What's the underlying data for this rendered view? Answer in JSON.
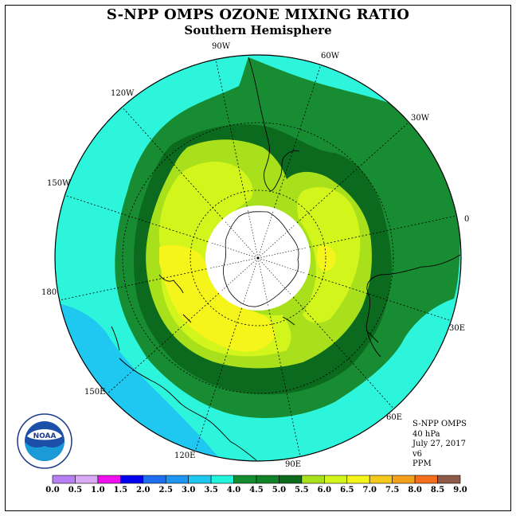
{
  "title": "S-NPP OMPS OZONE MIXING RATIO",
  "subtitle": "Southern Hemisphere",
  "longitude_labels": {
    "lon_90w": "90W",
    "lon_60w": "60W",
    "lon_120w": "120W",
    "lon_30w": "30W",
    "lon_150w": "150W",
    "lon_0": "0",
    "lon_180": "180",
    "lon_30e": "30E",
    "lon_150e": "150E",
    "lon_60e": "60E",
    "lon_120e": "120E",
    "lon_90e": "90E"
  },
  "info": {
    "instrument": "S-NPP OMPS",
    "pressure": "40 hPa",
    "date": "July 27, 2017",
    "version": "v6",
    "units": "PPM"
  },
  "logo": {
    "text": "NOAA",
    "icon": "noaa-logo-icon"
  },
  "colorbar": {
    "ticks": [
      "0.0",
      "0.5",
      "1.0",
      "1.5",
      "2.0",
      "2.5",
      "3.0",
      "3.5",
      "4.0",
      "4.5",
      "5.0",
      "5.5",
      "6.0",
      "6.5",
      "7.0",
      "7.5",
      "8.0",
      "8.5",
      "9.0"
    ],
    "colors": [
      "#b77ff4",
      "#d9a9f5",
      "#ee10ee",
      "#0000ee",
      "#1e6ef0",
      "#1e96f0",
      "#1ec8f0",
      "#22f5dc",
      "#148c32",
      "#128228",
      "#0b6a1c",
      "#a8e01c",
      "#d2f51c",
      "#f5f51c",
      "#f5c81c",
      "#f5a01c",
      "#f56e1c",
      "#ee0a0a",
      "#8c5a46"
    ]
  },
  "map_colors": {
    "cyan": "#2cf5dc",
    "light_blue": "#1ec8f0",
    "green": "#188c32",
    "dark_green": "#0c6a1e",
    "light_green": "#a8e01c",
    "yellow_green": "#d2f51c",
    "yellow": "#f5f51c",
    "pole_fill": "#ffffff"
  },
  "projection": "south-polar-stereographic"
}
